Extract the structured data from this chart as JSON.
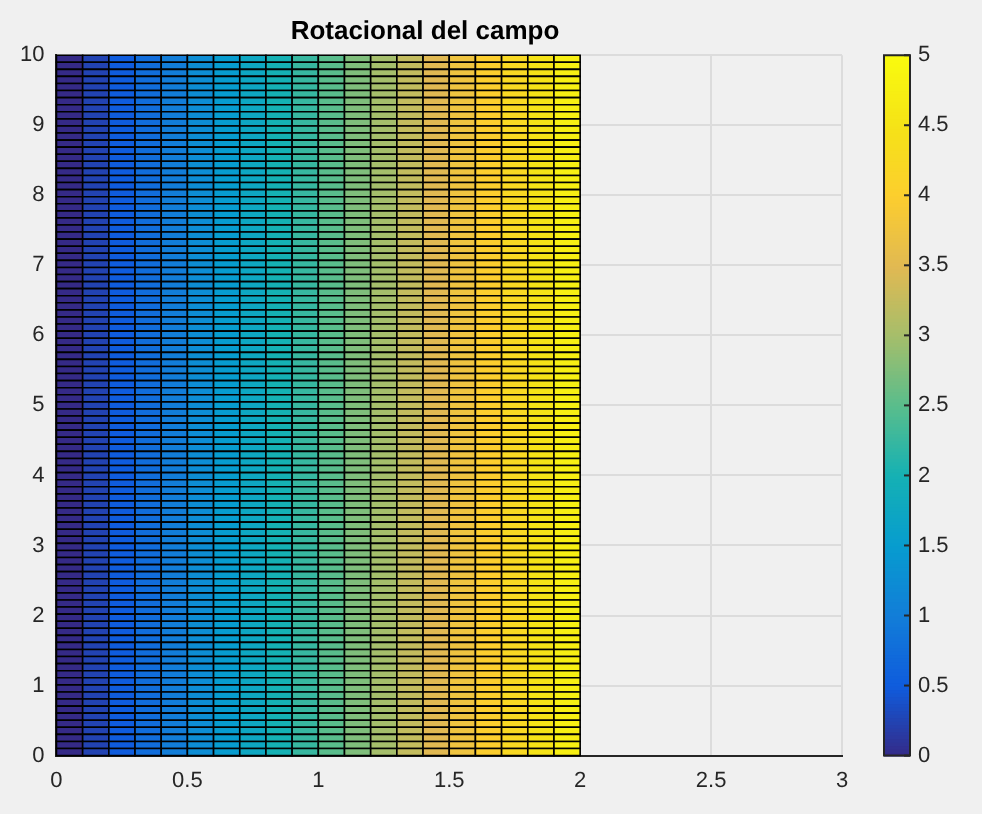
{
  "chart_data": {
    "type": "heatmap",
    "title": "Rotacional del campo",
    "x": [
      0.05,
      0.15,
      0.25,
      0.35,
      0.45,
      0.55,
      0.65,
      0.75,
      0.85,
      0.95,
      1.05,
      1.15,
      1.25,
      1.35,
      1.45,
      1.55,
      1.65,
      1.75,
      1.85,
      1.95
    ],
    "cells": [
      [
        0,
        0.25,
        0.5,
        0.75,
        1,
        1.25,
        1.5,
        1.75,
        2,
        2.25,
        2.5,
        2.75,
        3,
        3.25,
        3.5,
        3.75,
        4,
        4.25,
        4.5,
        4.75
      ],
      [
        0,
        0.25,
        0.5,
        0.75,
        1,
        1.25,
        1.5,
        1.75,
        2,
        2.25,
        2.5,
        2.75,
        3,
        3.25,
        3.5,
        3.75,
        4,
        4.25,
        4.5,
        4.75
      ],
      [
        0,
        0.25,
        0.5,
        0.75,
        1,
        1.25,
        1.5,
        1.75,
        2,
        2.25,
        2.5,
        2.75,
        3,
        3.25,
        3.5,
        3.75,
        4,
        4.25,
        4.5,
        4.75
      ],
      [
        0,
        0.25,
        0.5,
        0.75,
        1,
        1.25,
        1.5,
        1.75,
        2,
        2.25,
        2.5,
        2.75,
        3,
        3.25,
        3.5,
        3.75,
        4,
        4.25,
        4.5,
        4.75
      ],
      [
        0,
        0.25,
        0.5,
        0.75,
        1,
        1.25,
        1.5,
        1.75,
        2,
        2.25,
        2.5,
        2.75,
        3,
        3.25,
        3.5,
        3.75,
        4,
        4.25,
        4.5,
        4.75
      ],
      [
        0,
        0.25,
        0.5,
        0.75,
        1,
        1.25,
        1.5,
        1.75,
        2,
        2.25,
        2.5,
        2.75,
        3,
        3.25,
        3.5,
        3.75,
        4,
        4.25,
        4.5,
        4.75
      ],
      [
        0,
        0.25,
        0.5,
        0.75,
        1,
        1.25,
        1.5,
        1.75,
        2,
        2.25,
        2.5,
        2.75,
        3,
        3.25,
        3.5,
        3.75,
        4,
        4.25,
        4.5,
        4.75
      ],
      [
        0,
        0.25,
        0.5,
        0.75,
        1,
        1.25,
        1.5,
        1.75,
        2,
        2.25,
        2.5,
        2.75,
        3,
        3.25,
        3.5,
        3.75,
        4,
        4.25,
        4.5,
        4.75
      ],
      [
        0,
        0.25,
        0.5,
        0.75,
        1,
        1.25,
        1.5,
        1.75,
        2,
        2.25,
        2.5,
        2.75,
        3,
        3.25,
        3.5,
        3.75,
        4,
        4.25,
        4.5,
        4.75
      ],
      [
        0,
        0.25,
        0.5,
        0.75,
        1,
        1.25,
        1.5,
        1.75,
        2,
        2.25,
        2.5,
        2.75,
        3,
        3.25,
        3.5,
        3.75,
        4,
        4.25,
        4.5,
        4.75
      ],
      [
        0,
        0.25,
        0.5,
        0.75,
        1,
        1.25,
        1.5,
        1.75,
        2,
        2.25,
        2.5,
        2.75,
        3,
        3.25,
        3.5,
        3.75,
        4,
        4.25,
        4.5,
        4.75
      ],
      [
        0,
        0.25,
        0.5,
        0.75,
        1,
        1.25,
        1.5,
        1.75,
        2,
        2.25,
        2.5,
        2.75,
        3,
        3.25,
        3.5,
        3.75,
        4,
        4.25,
        4.5,
        4.75
      ],
      [
        0,
        0.25,
        0.5,
        0.75,
        1,
        1.25,
        1.5,
        1.75,
        2,
        2.25,
        2.5,
        2.75,
        3,
        3.25,
        3.5,
        3.75,
        4,
        4.25,
        4.5,
        4.75
      ],
      [
        0,
        0.25,
        0.5,
        0.75,
        1,
        1.25,
        1.5,
        1.75,
        2,
        2.25,
        2.5,
        2.75,
        3,
        3.25,
        3.5,
        3.75,
        4,
        4.25,
        4.5,
        4.75
      ],
      [
        0,
        0.25,
        0.5,
        0.75,
        1,
        1.25,
        1.5,
        1.75,
        2,
        2.25,
        2.5,
        2.75,
        3,
        3.25,
        3.5,
        3.75,
        4,
        4.25,
        4.5,
        4.75
      ],
      [
        0,
        0.25,
        0.5,
        0.75,
        1,
        1.25,
        1.5,
        1.75,
        2,
        2.25,
        2.5,
        2.75,
        3,
        3.25,
        3.5,
        3.75,
        4,
        4.25,
        4.5,
        4.75
      ],
      [
        0,
        0.25,
        0.5,
        0.75,
        1,
        1.25,
        1.5,
        1.75,
        2,
        2.25,
        2.5,
        2.75,
        3,
        3.25,
        3.5,
        3.75,
        4,
        4.25,
        4.5,
        4.75
      ],
      [
        0,
        0.25,
        0.5,
        0.75,
        1,
        1.25,
        1.5,
        1.75,
        2,
        2.25,
        2.5,
        2.75,
        3,
        3.25,
        3.5,
        3.75,
        4,
        4.25,
        4.5,
        4.75
      ],
      [
        0,
        0.25,
        0.5,
        0.75,
        1,
        1.25,
        1.5,
        1.75,
        2,
        2.25,
        2.5,
        2.75,
        3,
        3.25,
        3.5,
        3.75,
        4,
        4.25,
        4.5,
        4.75
      ],
      [
        0,
        0.25,
        0.5,
        0.75,
        1,
        1.25,
        1.5,
        1.75,
        2,
        2.25,
        2.5,
        2.75,
        3,
        3.25,
        3.5,
        3.75,
        4,
        4.25,
        4.5,
        4.75
      ],
      [
        0,
        0.25,
        0.5,
        0.75,
        1,
        1.25,
        1.5,
        1.75,
        2,
        2.25,
        2.5,
        2.75,
        3,
        3.25,
        3.5,
        3.75,
        4,
        4.25,
        4.5,
        4.75
      ],
      [
        0,
        0.25,
        0.5,
        0.75,
        1,
        1.25,
        1.5,
        1.75,
        2,
        2.25,
        2.5,
        2.75,
        3,
        3.25,
        3.5,
        3.75,
        4,
        4.25,
        4.5,
        4.75
      ],
      [
        0,
        0.25,
        0.5,
        0.75,
        1,
        1.25,
        1.5,
        1.75,
        2,
        2.25,
        2.5,
        2.75,
        3,
        3.25,
        3.5,
        3.75,
        4,
        4.25,
        4.5,
        4.75
      ],
      [
        0,
        0.25,
        0.5,
        0.75,
        1,
        1.25,
        1.5,
        1.75,
        2,
        2.25,
        2.5,
        2.75,
        3,
        3.25,
        3.5,
        3.75,
        4,
        4.25,
        4.5,
        4.75
      ],
      [
        0,
        0.25,
        0.5,
        0.75,
        1,
        1.25,
        1.5,
        1.75,
        2,
        2.25,
        2.5,
        2.75,
        3,
        3.25,
        3.5,
        3.75,
        4,
        4.25,
        4.5,
        4.75
      ],
      [
        0,
        0.25,
        0.5,
        0.75,
        1,
        1.25,
        1.5,
        1.75,
        2,
        2.25,
        2.5,
        2.75,
        3,
        3.25,
        3.5,
        3.75,
        4,
        4.25,
        4.5,
        4.75
      ],
      [
        0,
        0.25,
        0.5,
        0.75,
        1,
        1.25,
        1.5,
        1.75,
        2,
        2.25,
        2.5,
        2.75,
        3,
        3.25,
        3.5,
        3.75,
        4,
        4.25,
        4.5,
        4.75
      ],
      [
        0,
        0.25,
        0.5,
        0.75,
        1,
        1.25,
        1.5,
        1.75,
        2,
        2.25,
        2.5,
        2.75,
        3,
        3.25,
        3.5,
        3.75,
        4,
        4.25,
        4.5,
        4.75
      ],
      [
        0,
        0.25,
        0.5,
        0.75,
        1,
        1.25,
        1.5,
        1.75,
        2,
        2.25,
        2.5,
        2.75,
        3,
        3.25,
        3.5,
        3.75,
        4,
        4.25,
        4.5,
        4.75
      ],
      [
        0,
        0.25,
        0.5,
        0.75,
        1,
        1.25,
        1.5,
        1.75,
        2,
        2.25,
        2.5,
        2.75,
        3,
        3.25,
        3.5,
        3.75,
        4,
        4.25,
        4.5,
        4.75
      ],
      [
        0,
        0.25,
        0.5,
        0.75,
        1,
        1.25,
        1.5,
        1.75,
        2,
        2.25,
        2.5,
        2.75,
        3,
        3.25,
        3.5,
        3.75,
        4,
        4.25,
        4.5,
        4.75
      ],
      [
        0,
        0.25,
        0.5,
        0.75,
        1,
        1.25,
        1.5,
        1.75,
        2,
        2.25,
        2.5,
        2.75,
        3,
        3.25,
        3.5,
        3.75,
        4,
        4.25,
        4.5,
        4.75
      ],
      [
        0,
        0.25,
        0.5,
        0.75,
        1,
        1.25,
        1.5,
        1.75,
        2,
        2.25,
        2.5,
        2.75,
        3,
        3.25,
        3.5,
        3.75,
        4,
        4.25,
        4.5,
        4.75
      ],
      [
        0,
        0.25,
        0.5,
        0.75,
        1,
        1.25,
        1.5,
        1.75,
        2,
        2.25,
        2.5,
        2.75,
        3,
        3.25,
        3.5,
        3.75,
        4,
        4.25,
        4.5,
        4.75
      ],
      [
        0,
        0.25,
        0.5,
        0.75,
        1,
        1.25,
        1.5,
        1.75,
        2,
        2.25,
        2.5,
        2.75,
        3,
        3.25,
        3.5,
        3.75,
        4,
        4.25,
        4.5,
        4.75
      ],
      [
        0,
        0.25,
        0.5,
        0.75,
        1,
        1.25,
        1.5,
        1.75,
        2,
        2.25,
        2.5,
        2.75,
        3,
        3.25,
        3.5,
        3.75,
        4,
        4.25,
        4.5,
        4.75
      ],
      [
        0,
        0.25,
        0.5,
        0.75,
        1,
        1.25,
        1.5,
        1.75,
        2,
        2.25,
        2.5,
        2.75,
        3,
        3.25,
        3.5,
        3.75,
        4,
        4.25,
        4.5,
        4.75
      ],
      [
        0,
        0.25,
        0.5,
        0.75,
        1,
        1.25,
        1.5,
        1.75,
        2,
        2.25,
        2.5,
        2.75,
        3,
        3.25,
        3.5,
        3.75,
        4,
        4.25,
        4.5,
        4.75
      ],
      [
        0,
        0.25,
        0.5,
        0.75,
        1,
        1.25,
        1.5,
        1.75,
        2,
        2.25,
        2.5,
        2.75,
        3,
        3.25,
        3.5,
        3.75,
        4,
        4.25,
        4.5,
        4.75
      ],
      [
        0,
        0.25,
        0.5,
        0.75,
        1,
        1.25,
        1.5,
        1.75,
        2,
        2.25,
        2.5,
        2.75,
        3,
        3.25,
        3.5,
        3.75,
        4,
        4.25,
        4.5,
        4.75
      ],
      [
        0,
        0.25,
        0.5,
        0.75,
        1,
        1.25,
        1.5,
        1.75,
        2,
        2.25,
        2.5,
        2.75,
        3,
        3.25,
        3.5,
        3.75,
        4,
        4.25,
        4.5,
        4.75
      ],
      [
        0,
        0.25,
        0.5,
        0.75,
        1,
        1.25,
        1.5,
        1.75,
        2,
        2.25,
        2.5,
        2.75,
        3,
        3.25,
        3.5,
        3.75,
        4,
        4.25,
        4.5,
        4.75
      ],
      [
        0,
        0.25,
        0.5,
        0.75,
        1,
        1.25,
        1.5,
        1.75,
        2,
        2.25,
        2.5,
        2.75,
        3,
        3.25,
        3.5,
        3.75,
        4,
        4.25,
        4.5,
        4.75
      ],
      [
        0,
        0.25,
        0.5,
        0.75,
        1,
        1.25,
        1.5,
        1.75,
        2,
        2.25,
        2.5,
        2.75,
        3,
        3.25,
        3.5,
        3.75,
        4,
        4.25,
        4.5,
        4.75
      ],
      [
        0,
        0.25,
        0.5,
        0.75,
        1,
        1.25,
        1.5,
        1.75,
        2,
        2.25,
        2.5,
        2.75,
        3,
        3.25,
        3.5,
        3.75,
        4,
        4.25,
        4.5,
        4.75
      ],
      [
        0,
        0.25,
        0.5,
        0.75,
        1,
        1.25,
        1.5,
        1.75,
        2,
        2.25,
        2.5,
        2.75,
        3,
        3.25,
        3.5,
        3.75,
        4,
        4.25,
        4.5,
        4.75
      ],
      [
        0,
        0.25,
        0.5,
        0.75,
        1,
        1.25,
        1.5,
        1.75,
        2,
        2.25,
        2.5,
        2.75,
        3,
        3.25,
        3.5,
        3.75,
        4,
        4.25,
        4.5,
        4.75
      ],
      [
        0,
        0.25,
        0.5,
        0.75,
        1,
        1.25,
        1.5,
        1.75,
        2,
        2.25,
        2.5,
        2.75,
        3,
        3.25,
        3.5,
        3.75,
        4,
        4.25,
        4.5,
        4.75
      ],
      [
        0,
        0.25,
        0.5,
        0.75,
        1,
        1.25,
        1.5,
        1.75,
        2,
        2.25,
        2.5,
        2.75,
        3,
        3.25,
        3.5,
        3.75,
        4,
        4.25,
        4.5,
        4.75
      ],
      [
        0,
        0.25,
        0.5,
        0.75,
        1,
        1.25,
        1.5,
        1.75,
        2,
        2.25,
        2.5,
        2.75,
        3,
        3.25,
        3.5,
        3.75,
        4,
        4.25,
        4.5,
        4.75
      ],
      [
        0,
        0.25,
        0.5,
        0.75,
        1,
        1.25,
        1.5,
        1.75,
        2,
        2.25,
        2.5,
        2.75,
        3,
        3.25,
        3.5,
        3.75,
        4,
        4.25,
        4.5,
        4.75
      ],
      [
        0,
        0.25,
        0.5,
        0.75,
        1,
        1.25,
        1.5,
        1.75,
        2,
        2.25,
        2.5,
        2.75,
        3,
        3.25,
        3.5,
        3.75,
        4,
        4.25,
        4.5,
        4.75
      ],
      [
        0,
        0.25,
        0.5,
        0.75,
        1,
        1.25,
        1.5,
        1.75,
        2,
        2.25,
        2.5,
        2.75,
        3,
        3.25,
        3.5,
        3.75,
        4,
        4.25,
        4.5,
        4.75
      ],
      [
        0,
        0.25,
        0.5,
        0.75,
        1,
        1.25,
        1.5,
        1.75,
        2,
        2.25,
        2.5,
        2.75,
        3,
        3.25,
        3.5,
        3.75,
        4,
        4.25,
        4.5,
        4.75
      ],
      [
        0,
        0.25,
        0.5,
        0.75,
        1,
        1.25,
        1.5,
        1.75,
        2,
        2.25,
        2.5,
        2.75,
        3,
        3.25,
        3.5,
        3.75,
        4,
        4.25,
        4.5,
        4.75
      ],
      [
        0,
        0.25,
        0.5,
        0.75,
        1,
        1.25,
        1.5,
        1.75,
        2,
        2.25,
        2.5,
        2.75,
        3,
        3.25,
        3.5,
        3.75,
        4,
        4.25,
        4.5,
        4.75
      ],
      [
        0,
        0.25,
        0.5,
        0.75,
        1,
        1.25,
        1.5,
        1.75,
        2,
        2.25,
        2.5,
        2.75,
        3,
        3.25,
        3.5,
        3.75,
        4,
        4.25,
        4.5,
        4.75
      ],
      [
        0,
        0.25,
        0.5,
        0.75,
        1,
        1.25,
        1.5,
        1.75,
        2,
        2.25,
        2.5,
        2.75,
        3,
        3.25,
        3.5,
        3.75,
        4,
        4.25,
        4.5,
        4.75
      ],
      [
        0,
        0.25,
        0.5,
        0.75,
        1,
        1.25,
        1.5,
        1.75,
        2,
        2.25,
        2.5,
        2.75,
        3,
        3.25,
        3.5,
        3.75,
        4,
        4.25,
        4.5,
        4.75
      ],
      [
        0,
        0.25,
        0.5,
        0.75,
        1,
        1.25,
        1.5,
        1.75,
        2,
        2.25,
        2.5,
        2.75,
        3,
        3.25,
        3.5,
        3.75,
        4,
        4.25,
        4.5,
        4.75
      ],
      [
        0,
        0.25,
        0.5,
        0.75,
        1,
        1.25,
        1.5,
        1.75,
        2,
        2.25,
        2.5,
        2.75,
        3,
        3.25,
        3.5,
        3.75,
        4,
        4.25,
        4.5,
        4.75
      ],
      [
        0,
        0.25,
        0.5,
        0.75,
        1,
        1.25,
        1.5,
        1.75,
        2,
        2.25,
        2.5,
        2.75,
        3,
        3.25,
        3.5,
        3.75,
        4,
        4.25,
        4.5,
        4.75
      ],
      [
        0,
        0.25,
        0.5,
        0.75,
        1,
        1.25,
        1.5,
        1.75,
        2,
        2.25,
        2.5,
        2.75,
        3,
        3.25,
        3.5,
        3.75,
        4,
        4.25,
        4.5,
        4.75
      ],
      [
        0,
        0.25,
        0.5,
        0.75,
        1,
        1.25,
        1.5,
        1.75,
        2,
        2.25,
        2.5,
        2.75,
        3,
        3.25,
        3.5,
        3.75,
        4,
        4.25,
        4.5,
        4.75
      ],
      [
        0,
        0.25,
        0.5,
        0.75,
        1,
        1.25,
        1.5,
        1.75,
        2,
        2.25,
        2.5,
        2.75,
        3,
        3.25,
        3.5,
        3.75,
        4,
        4.25,
        4.5,
        4.75
      ],
      [
        0,
        0.25,
        0.5,
        0.75,
        1,
        1.25,
        1.5,
        1.75,
        2,
        2.25,
        2.5,
        2.75,
        3,
        3.25,
        3.5,
        3.75,
        4,
        4.25,
        4.5,
        4.75
      ],
      [
        0,
        0.25,
        0.5,
        0.75,
        1,
        1.25,
        1.5,
        1.75,
        2,
        2.25,
        2.5,
        2.75,
        3,
        3.25,
        3.5,
        3.75,
        4,
        4.25,
        4.5,
        4.75
      ],
      [
        0,
        0.25,
        0.5,
        0.75,
        1,
        1.25,
        1.5,
        1.75,
        2,
        2.25,
        2.5,
        2.75,
        3,
        3.25,
        3.5,
        3.75,
        4,
        4.25,
        4.5,
        4.75
      ],
      [
        0,
        0.25,
        0.5,
        0.75,
        1,
        1.25,
        1.5,
        1.75,
        2,
        2.25,
        2.5,
        2.75,
        3,
        3.25,
        3.5,
        3.75,
        4,
        4.25,
        4.5,
        4.75
      ],
      [
        0,
        0.25,
        0.5,
        0.75,
        1,
        1.25,
        1.5,
        1.75,
        2,
        2.25,
        2.5,
        2.75,
        3,
        3.25,
        3.5,
        3.75,
        4,
        4.25,
        4.5,
        4.75
      ],
      [
        0,
        0.25,
        0.5,
        0.75,
        1,
        1.25,
        1.5,
        1.75,
        2,
        2.25,
        2.5,
        2.75,
        3,
        3.25,
        3.5,
        3.75,
        4,
        4.25,
        4.5,
        4.75
      ],
      [
        0,
        0.25,
        0.5,
        0.75,
        1,
        1.25,
        1.5,
        1.75,
        2,
        2.25,
        2.5,
        2.75,
        3,
        3.25,
        3.5,
        3.75,
        4,
        4.25,
        4.5,
        4.75
      ],
      [
        0,
        0.25,
        0.5,
        0.75,
        1,
        1.25,
        1.5,
        1.75,
        2,
        2.25,
        2.5,
        2.75,
        3,
        3.25,
        3.5,
        3.75,
        4,
        4.25,
        4.5,
        4.75
      ],
      [
        0,
        0.25,
        0.5,
        0.75,
        1,
        1.25,
        1.5,
        1.75,
        2,
        2.25,
        2.5,
        2.75,
        3,
        3.25,
        3.5,
        3.75,
        4,
        4.25,
        4.5,
        4.75
      ],
      [
        0,
        0.25,
        0.5,
        0.75,
        1,
        1.25,
        1.5,
        1.75,
        2,
        2.25,
        2.5,
        2.75,
        3,
        3.25,
        3.5,
        3.75,
        4,
        4.25,
        4.5,
        4.75
      ],
      [
        0,
        0.25,
        0.5,
        0.75,
        1,
        1.25,
        1.5,
        1.75,
        2,
        2.25,
        2.5,
        2.75,
        3,
        3.25,
        3.5,
        3.75,
        4,
        4.25,
        4.5,
        4.75
      ],
      [
        0,
        0.25,
        0.5,
        0.75,
        1,
        1.25,
        1.5,
        1.75,
        2,
        2.25,
        2.5,
        2.75,
        3,
        3.25,
        3.5,
        3.75,
        4,
        4.25,
        4.5,
        4.75
      ],
      [
        0,
        0.25,
        0.5,
        0.75,
        1,
        1.25,
        1.5,
        1.75,
        2,
        2.25,
        2.5,
        2.75,
        3,
        3.25,
        3.5,
        3.75,
        4,
        4.25,
        4.5,
        4.75
      ],
      [
        0,
        0.25,
        0.5,
        0.75,
        1,
        1.25,
        1.5,
        1.75,
        2,
        2.25,
        2.5,
        2.75,
        3,
        3.25,
        3.5,
        3.75,
        4,
        4.25,
        4.5,
        4.75
      ],
      [
        0,
        0.25,
        0.5,
        0.75,
        1,
        1.25,
        1.5,
        1.75,
        2,
        2.25,
        2.5,
        2.75,
        3,
        3.25,
        3.5,
        3.75,
        4,
        4.25,
        4.5,
        4.75
      ],
      [
        0,
        0.25,
        0.5,
        0.75,
        1,
        1.25,
        1.5,
        1.75,
        2,
        2.25,
        2.5,
        2.75,
        3,
        3.25,
        3.5,
        3.75,
        4,
        4.25,
        4.5,
        4.75
      ],
      [
        0,
        0.25,
        0.5,
        0.75,
        1,
        1.25,
        1.5,
        1.75,
        2,
        2.25,
        2.5,
        2.75,
        3,
        3.25,
        3.5,
        3.75,
        4,
        4.25,
        4.5,
        4.75
      ],
      [
        0,
        0.25,
        0.5,
        0.75,
        1,
        1.25,
        1.5,
        1.75,
        2,
        2.25,
        2.5,
        2.75,
        3,
        3.25,
        3.5,
        3.75,
        4,
        4.25,
        4.5,
        4.75
      ],
      [
        0,
        0.25,
        0.5,
        0.75,
        1,
        1.25,
        1.5,
        1.75,
        2,
        2.25,
        2.5,
        2.75,
        3,
        3.25,
        3.5,
        3.75,
        4,
        4.25,
        4.5,
        4.75
      ],
      [
        0,
        0.25,
        0.5,
        0.75,
        1,
        1.25,
        1.5,
        1.75,
        2,
        2.25,
        2.5,
        2.75,
        3,
        3.25,
        3.5,
        3.75,
        4,
        4.25,
        4.5,
        4.75
      ],
      [
        0,
        0.25,
        0.5,
        0.75,
        1,
        1.25,
        1.5,
        1.75,
        2,
        2.25,
        2.5,
        2.75,
        3,
        3.25,
        3.5,
        3.75,
        4,
        4.25,
        4.5,
        4.75
      ],
      [
        0,
        0.25,
        0.5,
        0.75,
        1,
        1.25,
        1.5,
        1.75,
        2,
        2.25,
        2.5,
        2.75,
        3,
        3.25,
        3.5,
        3.75,
        4,
        4.25,
        4.5,
        4.75
      ],
      [
        0,
        0.25,
        0.5,
        0.75,
        1,
        1.25,
        1.5,
        1.75,
        2,
        2.25,
        2.5,
        2.75,
        3,
        3.25,
        3.5,
        3.75,
        4,
        4.25,
        4.5,
        4.75
      ],
      [
        0,
        0.25,
        0.5,
        0.75,
        1,
        1.25,
        1.5,
        1.75,
        2,
        2.25,
        2.5,
        2.75,
        3,
        3.25,
        3.5,
        3.75,
        4,
        4.25,
        4.5,
        4.75
      ],
      [
        0,
        0.25,
        0.5,
        0.75,
        1,
        1.25,
        1.5,
        1.75,
        2,
        2.25,
        2.5,
        2.75,
        3,
        3.25,
        3.5,
        3.75,
        4,
        4.25,
        4.5,
        4.75
      ],
      [
        0,
        0.25,
        0.5,
        0.75,
        1,
        1.25,
        1.5,
        1.75,
        2,
        2.25,
        2.5,
        2.75,
        3,
        3.25,
        3.5,
        3.75,
        4,
        4.25,
        4.5,
        4.75
      ],
      [
        0,
        0.25,
        0.5,
        0.75,
        1,
        1.25,
        1.5,
        1.75,
        2,
        2.25,
        2.5,
        2.75,
        3,
        3.25,
        3.5,
        3.75,
        4,
        4.25,
        4.5,
        4.75
      ],
      [
        0,
        0.25,
        0.5,
        0.75,
        1,
        1.25,
        1.5,
        1.75,
        2,
        2.25,
        2.5,
        2.75,
        3,
        3.25,
        3.5,
        3.75,
        4,
        4.25,
        4.5,
        4.75
      ],
      [
        0,
        0.25,
        0.5,
        0.75,
        1,
        1.25,
        1.5,
        1.75,
        2,
        2.25,
        2.5,
        2.75,
        3,
        3.25,
        3.5,
        3.75,
        4,
        4.25,
        4.5,
        4.75
      ],
      [
        0,
        0.25,
        0.5,
        0.75,
        1,
        1.25,
        1.5,
        1.75,
        2,
        2.25,
        2.5,
        2.75,
        3,
        3.25,
        3.5,
        3.75,
        4,
        4.25,
        4.5,
        4.75
      ],
      [
        0,
        0.25,
        0.5,
        0.75,
        1,
        1.25,
        1.5,
        1.75,
        2,
        2.25,
        2.5,
        2.75,
        3,
        3.25,
        3.5,
        3.75,
        4,
        4.25,
        4.5,
        4.75
      ],
      [
        0,
        0.25,
        0.5,
        0.75,
        1,
        1.25,
        1.5,
        1.75,
        2,
        2.25,
        2.5,
        2.75,
        3,
        3.25,
        3.5,
        3.75,
        4,
        4.25,
        4.5,
        4.75
      ],
      [
        0,
        0.25,
        0.5,
        0.75,
        1,
        1.25,
        1.5,
        1.75,
        2,
        2.25,
        2.5,
        2.75,
        3,
        3.25,
        3.5,
        3.75,
        4,
        4.25,
        4.5,
        4.75
      ],
      [
        0,
        0.25,
        0.5,
        0.75,
        1,
        1.25,
        1.5,
        1.75,
        2,
        2.25,
        2.5,
        2.75,
        3,
        3.25,
        3.5,
        3.75,
        4,
        4.25,
        4.5,
        4.75
      ]
    ],
    "clim": [
      0,
      5
    ],
    "cticks": [
      0,
      0.5,
      1,
      1.5,
      2,
      2.5,
      3,
      3.5,
      4,
      4.5,
      5
    ],
    "xlim": [
      0,
      3
    ],
    "xticks": [
      0,
      0.5,
      1,
      1.5,
      2,
      2.5,
      3
    ],
    "ylim": [
      0,
      10
    ],
    "yticks": [
      0,
      1,
      2,
      3,
      4,
      5,
      6,
      7,
      8,
      9,
      10
    ],
    "grid": true
  }
}
